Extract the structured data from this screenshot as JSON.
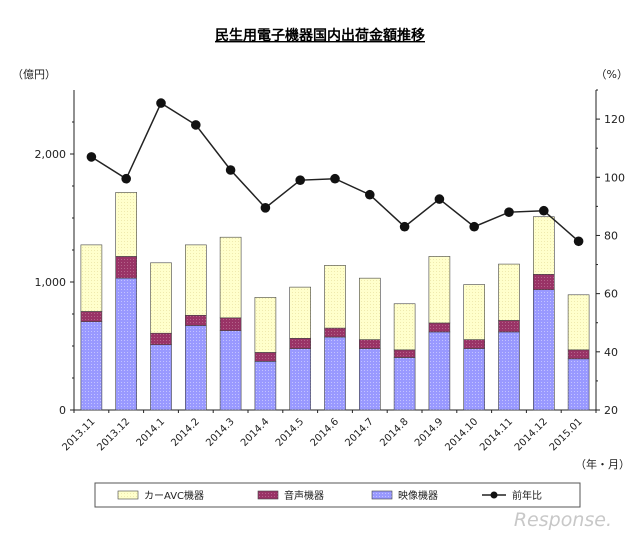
{
  "chart_data": {
    "type": "bar",
    "title": "民生用電子機器国内出荷金額推移",
    "y_left_label": "（億円）",
    "y_right_label": "（%）",
    "x_unit_label": "（年・月）",
    "categories": [
      "2013.11",
      "2013.12",
      "2014.1",
      "2014.2",
      "2014.3",
      "2014.4",
      "2014.5",
      "2014.6",
      "2014.7",
      "2014.8",
      "2014.9",
      "2014.10",
      "2014.11",
      "2014.12",
      "2015.01"
    ],
    "series": [
      {
        "name": "映像機器",
        "axis": "left",
        "stack": "bar",
        "color": "#9999ff",
        "values": [
          690,
          1030,
          510,
          660,
          620,
          380,
          480,
          570,
          480,
          410,
          610,
          480,
          610,
          940,
          400
        ]
      },
      {
        "name": "音声機器",
        "axis": "left",
        "stack": "bar",
        "color": "#993366",
        "values": [
          80,
          170,
          90,
          80,
          100,
          70,
          80,
          70,
          70,
          60,
          70,
          70,
          90,
          120,
          70
        ]
      },
      {
        "name": "カーAVC機器",
        "axis": "left",
        "stack": "bar",
        "color": "#ffffcc",
        "values": [
          520,
          500,
          550,
          550,
          630,
          430,
          400,
          490,
          480,
          360,
          520,
          430,
          440,
          450,
          430
        ]
      },
      {
        "name": "前年比",
        "axis": "right",
        "type": "line",
        "color": "#000000",
        "values": [
          107,
          99.5,
          125.5,
          118,
          102.5,
          89.5,
          99,
          99.5,
          94,
          83,
          92.5,
          83,
          88,
          88.5,
          78
        ]
      }
    ],
    "y_left": {
      "min": 0,
      "max": 2500,
      "ticks": [
        0,
        1000,
        2000
      ],
      "tick_labels": [
        "0",
        "1,000",
        "2,000"
      ]
    },
    "y_right": {
      "min": 20,
      "max": 130,
      "ticks": [
        20,
        40,
        60,
        80,
        100,
        120
      ],
      "tick_labels": [
        "20",
        "40",
        "60",
        "80",
        "100",
        "120"
      ]
    },
    "legend": {
      "position": "bottom",
      "items": [
        "カーAVC機器",
        "音声機器",
        "映像機器",
        "前年比"
      ]
    }
  },
  "watermark": "Response."
}
